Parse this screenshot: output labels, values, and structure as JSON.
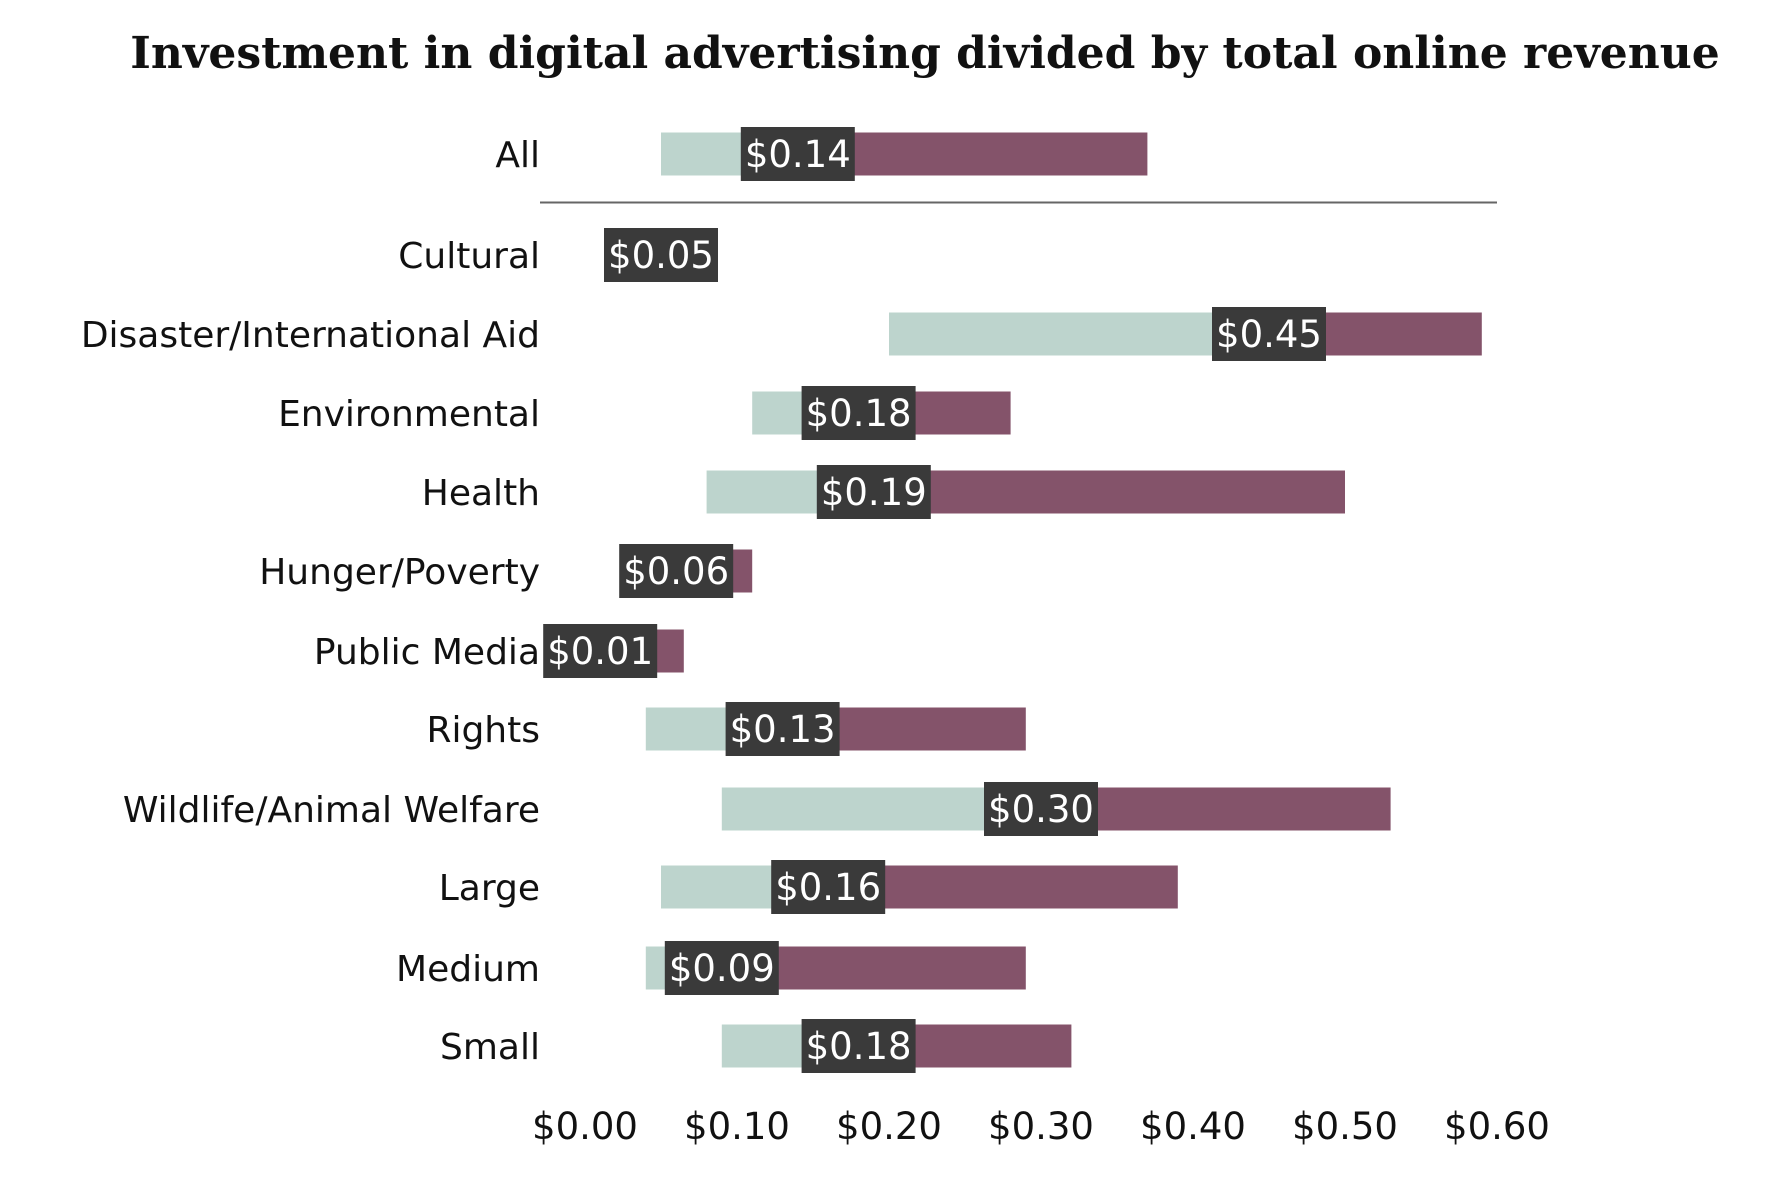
{
  "chart_data": {
    "type": "bar",
    "title": "Investment in digital advertising divided by total online revenue",
    "xlabel": "",
    "ylabel": "",
    "xlim": [
      0,
      0.6
    ],
    "xticks": [
      0,
      0.1,
      0.2,
      0.3,
      0.4,
      0.5,
      0.6
    ],
    "xtick_labels": [
      "$0.00",
      "$0.10",
      "$0.20",
      "$0.30",
      "$0.40",
      "$0.50",
      "$0.60"
    ],
    "colors": {
      "low_range": "#bdd4cd",
      "high_range": "#84536a",
      "median_box": "#3a3a3a",
      "median_text": "#ffffff",
      "separator": "#666666"
    },
    "categories": [
      "All",
      "Cultural",
      "Disaster/International Aid",
      "Environmental",
      "Health",
      "Hunger/Poverty",
      "Public Media",
      "Rights",
      "Wildlife/Animal Welfare",
      "Large",
      "Medium",
      "Small"
    ],
    "series": [
      {
        "name": "low",
        "values": [
          0.05,
          0.03,
          0.2,
          0.11,
          0.08,
          0.04,
          0.005,
          0.04,
          0.09,
          0.05,
          0.04,
          0.09
        ]
      },
      {
        "name": "median",
        "values": [
          0.14,
          0.05,
          0.45,
          0.18,
          0.19,
          0.06,
          0.01,
          0.13,
          0.3,
          0.16,
          0.09,
          0.18
        ]
      },
      {
        "name": "high",
        "values": [
          0.37,
          0.07,
          0.59,
          0.28,
          0.5,
          0.11,
          0.065,
          0.29,
          0.53,
          0.39,
          0.29,
          0.32
        ]
      }
    ],
    "median_labels": [
      "$0.14",
      "$0.05",
      "$0.45",
      "$0.18",
      "$0.19",
      "$0.06",
      "$0.01",
      "$0.13",
      "$0.30",
      "$0.16",
      "$0.09",
      "$0.18"
    ],
    "separator_after": "All",
    "legend": "none"
  }
}
